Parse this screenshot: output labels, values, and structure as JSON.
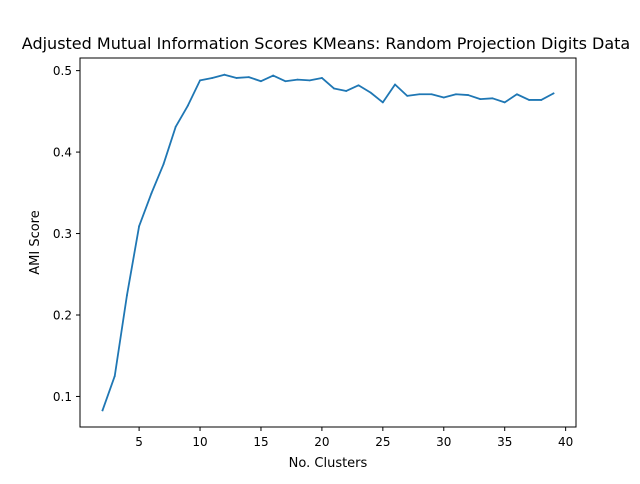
{
  "chart_data": {
    "type": "line",
    "title": "Adjusted Mutual Information Scores KMeans: Random Projection Digits Data",
    "xlabel": "No. Clusters",
    "ylabel": "AMI Score",
    "xlim": [
      0.15,
      40.85
    ],
    "ylim": [
      0.0625,
      0.5155
    ],
    "xticks": [
      5,
      10,
      15,
      20,
      25,
      30,
      35,
      40
    ],
    "yticks": [
      0.1,
      0.2,
      0.3,
      0.4,
      0.5
    ],
    "xtick_labels": [
      "5",
      "10",
      "15",
      "20",
      "25",
      "30",
      "35",
      "40"
    ],
    "ytick_labels": [
      "0.1",
      "0.2",
      "0.3",
      "0.4",
      "0.5"
    ],
    "grid": false,
    "legend": "none",
    "series": [
      {
        "color": "#1f77b4",
        "x": [
          2,
          3,
          4,
          5,
          6,
          7,
          8,
          9,
          10,
          11,
          12,
          13,
          14,
          15,
          16,
          17,
          18,
          19,
          20,
          21,
          22,
          23,
          24,
          25,
          26,
          27,
          28,
          29,
          30,
          31,
          32,
          33,
          34,
          35,
          36,
          37,
          38,
          39
        ],
        "values": [
          0.083,
          0.125,
          0.224,
          0.309,
          0.349,
          0.385,
          0.431,
          0.457,
          0.488,
          0.491,
          0.495,
          0.491,
          0.492,
          0.487,
          0.494,
          0.487,
          0.489,
          0.488,
          0.491,
          0.478,
          0.475,
          0.482,
          0.473,
          0.461,
          0.483,
          0.469,
          0.471,
          0.471,
          0.467,
          0.471,
          0.47,
          0.465,
          0.466,
          0.461,
          0.471,
          0.464,
          0.464,
          0.472
        ]
      }
    ]
  }
}
